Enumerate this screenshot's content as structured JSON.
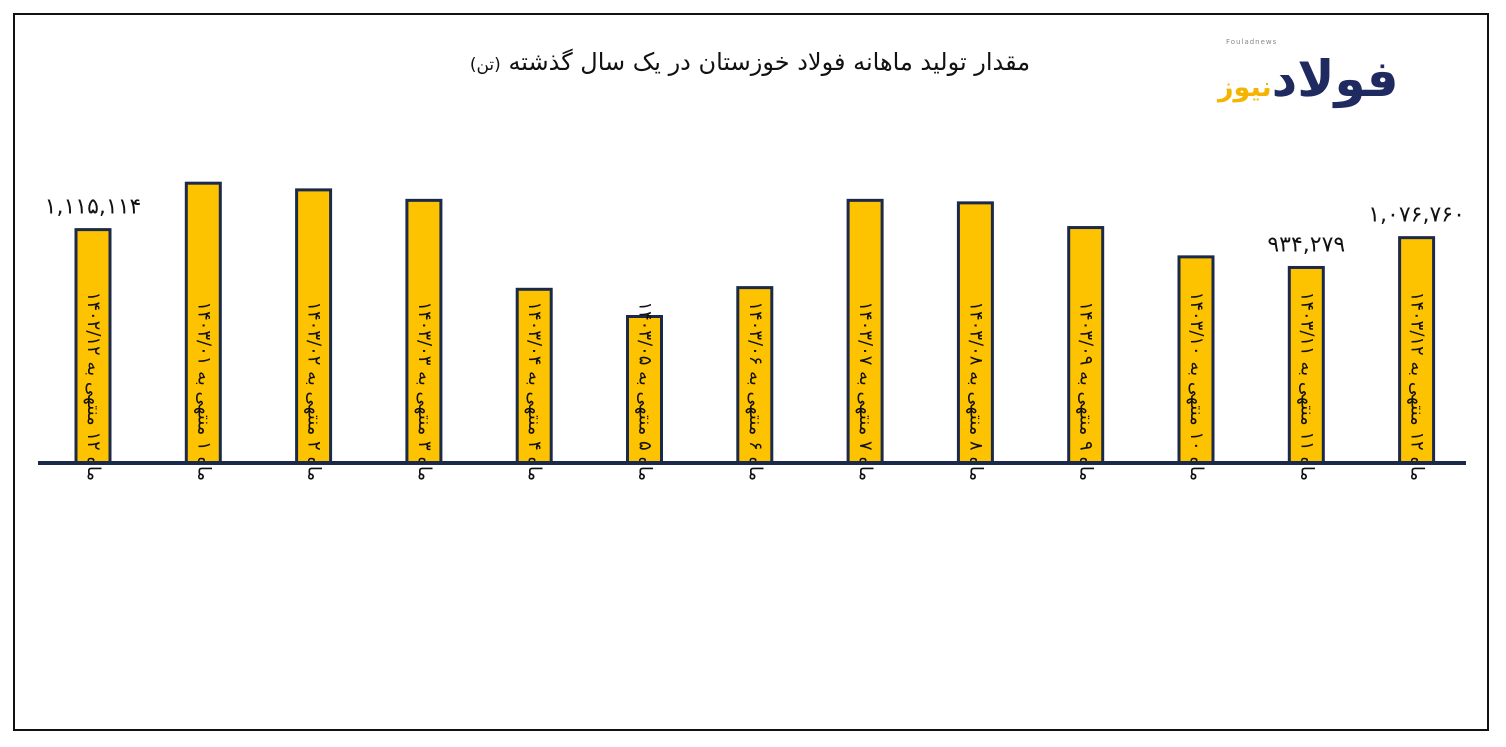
{
  "title": "مقدار تولید ماهانه فولاد خوزستان در یک سال گذشته",
  "title_unit": "(تن)",
  "logo": {
    "small": "Fouladnews",
    "main": "فولاد",
    "sub": "نیوز"
  },
  "colors": {
    "bar_fill": "#FDC200",
    "bar_stroke": "#1B2A4A",
    "axis": "#1B2A4A"
  },
  "chart_data": {
    "type": "bar",
    "categories": [
      "ماه ۱۲ منتهی به ۱۴۰۲/۱۲",
      "ماه ۱ منتهی به ۱۴۰۳/۰۱",
      "ماه ۲ منتهی به ۱۴۰۳/۰۲",
      "ماه ۳ منتهی به ۱۴۰۳/۰۳",
      "ماه ۴ منتهی به ۱۴۰۳/۰۴",
      "ماه ۵ منتهی به ۱۴۰۳/۰۵",
      "ماه ۶ منتهی به ۱۴۰۳/۰۶",
      "ماه ۷ منتهی به ۱۴۰۳/۰۷",
      "ماه ۸ منتهی به ۱۴۰۳/۰۸",
      "ماه ۹ منتهی به ۱۴۰۳/۰۹",
      "ماه ۱۰ منتهی به ۱۴۰۳/۱۰",
      "ماه ۱۱ منتهی به ۱۴۰۳/۱۱",
      "ماه ۱۲ منتهی به ۱۴۰۳/۱۲"
    ],
    "values": [
      1115114,
      1337000,
      1305000,
      1255000,
      830000,
      700000,
      838000,
      1255000,
      1243000,
      1125000,
      985000,
      934279,
      1076760
    ],
    "data_labels": [
      "۱,۱۱۵,۱۱۴",
      "",
      "",
      "",
      "",
      "",
      "",
      "",
      "",
      "",
      "",
      "۹۳۴,۲۷۹",
      "۱,۰۷۶,۷۶۰"
    ],
    "ylim": [
      0,
      1400000
    ],
    "grid": false,
    "legend": "none"
  }
}
